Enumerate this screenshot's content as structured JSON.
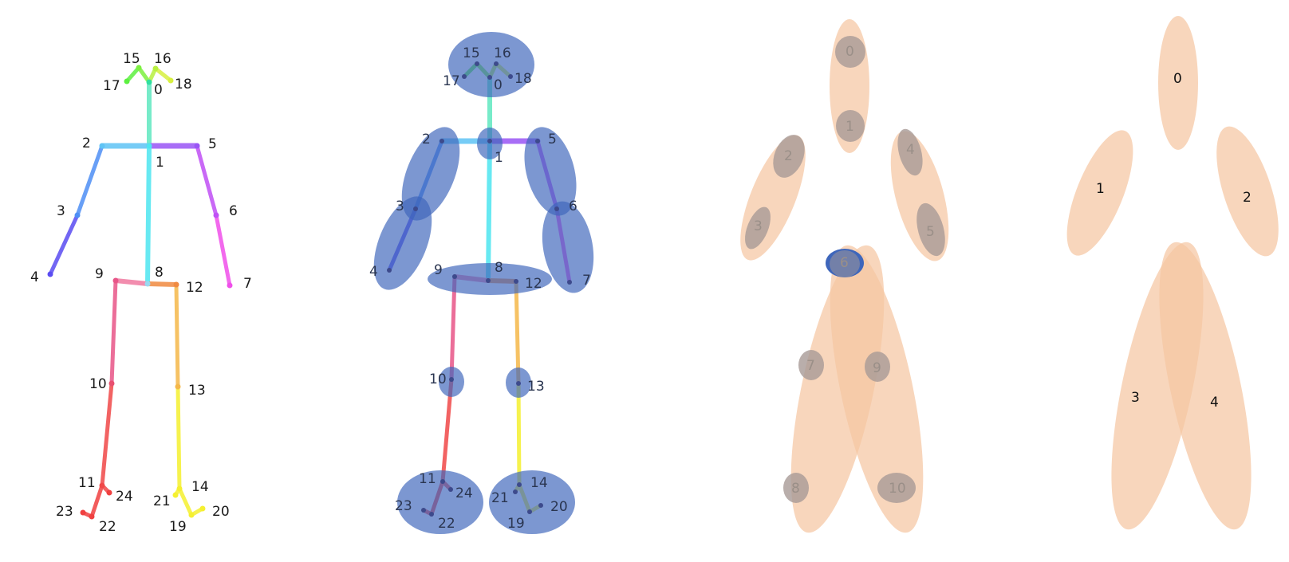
{
  "skeleton": {
    "colors": {
      "j0": "#2fe0a0",
      "j1": "#4de6f0",
      "j2": "#5fc4f5",
      "j3": "#4e8ff5",
      "j4": "#5a4cf2",
      "j5": "#9a55f5",
      "j6": "#c050f5",
      "j7": "#f050ea",
      "j8": "#f07aa0",
      "j9": "#e85588",
      "j10": "#e85070",
      "j11": "#f04848",
      "j12": "#f08a40",
      "j13": "#f5b84a",
      "j14": "#f5f030",
      "j15": "#7cf040",
      "j16": "#b8f040",
      "j17": "#5cf040",
      "j18": "#d8f040",
      "j19": "#f5f030",
      "j20": "#f5f030",
      "j21": "#f5f030",
      "j22": "#f04040",
      "j23": "#f04040",
      "j24": "#f04040"
    }
  },
  "panel1": {
    "labels": [
      "0",
      "1",
      "2",
      "3",
      "4",
      "5",
      "6",
      "7",
      "8",
      "9",
      "10",
      "11",
      "12",
      "13",
      "14",
      "15",
      "16",
      "17",
      "18",
      "19",
      "20",
      "21",
      "22",
      "23",
      "24"
    ]
  },
  "panel2": {
    "labels": [
      "0",
      "1",
      "2",
      "3",
      "4",
      "5",
      "6",
      "7",
      "8",
      "9",
      "10",
      "11",
      "12",
      "13",
      "14",
      "15",
      "16",
      "17",
      "18",
      "19",
      "20",
      "21",
      "22",
      "23",
      "24"
    ],
    "region_color": "#4a74c4"
  },
  "panel3": {
    "labels": [
      "0",
      "1",
      "2",
      "3",
      "4",
      "5",
      "6",
      "7",
      "8",
      "9",
      "10"
    ],
    "limb_color": "#f5caa8",
    "part_color": "#a89a96"
  },
  "panel4": {
    "labels": [
      "0",
      "1",
      "2",
      "3",
      "4"
    ],
    "limb_color": "#f5caa8"
  }
}
